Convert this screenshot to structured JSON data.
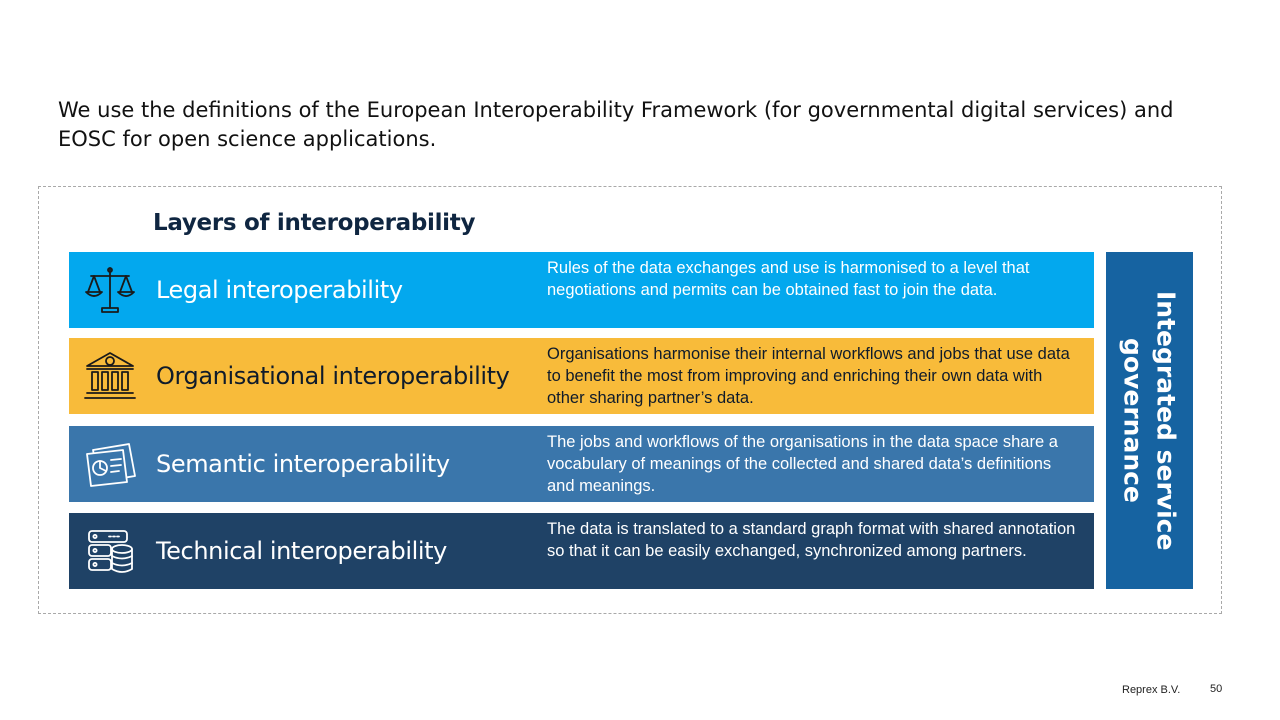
{
  "intro": {
    "text": "We use the definitions of the European Interoperability Framework (for governmental digital services) and EOSC for open science applications."
  },
  "diagram": {
    "title": "Layers of interoperability",
    "layers": [
      {
        "name": "Legal interoperability",
        "description": "Rules of the data exchanges and use is harmonised to a level that negotiations and permits can be obtained fast to join the data.",
        "icon": "scales-icon",
        "color": "#03a8ee"
      },
      {
        "name": "Organisational interoperability",
        "description": "Organisations harmonise their internal workflows and jobs that use data to benefit the most from improving and enriching their own data with other sharing partner’s data.",
        "icon": "bank-icon",
        "color": "#f8bb3a"
      },
      {
        "name": "Semantic interoperability",
        "description": "The jobs and workflows of the organisations in the data space share a vocabulary of meanings of the collected and shared data’s definitions and meanings.",
        "icon": "document-chart-icon",
        "color": "#3a76ab"
      },
      {
        "name": "Technical interoperability",
        "description": "The data is translated to a standard graph format with shared annotation so that it can be easily exchanged, synchronized among partners.",
        "icon": "server-database-icon",
        "color": "#1f4266"
      }
    ],
    "governance": {
      "label": "Integrated service governance",
      "color": "#1663a1"
    }
  },
  "footer": {
    "company": "Reprex B.V.",
    "page_number": "50"
  }
}
